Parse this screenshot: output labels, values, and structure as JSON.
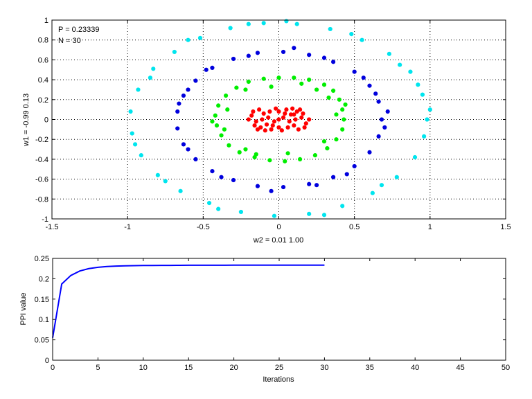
{
  "colors": {
    "inner": "#ff0000",
    "ring2": "#00ee00",
    "ring3": "#0000dd",
    "ring4": "#00e5ee",
    "curve": "#0000ff"
  },
  "chart_data": [
    {
      "type": "scatter",
      "annotations": [
        "P = 0.23339",
        "N = 30"
      ],
      "xlabel": "w2 = 0.01  1.00",
      "ylabel": "w1 = -0.99  0.13",
      "xlim": [
        -1.5,
        1.5
      ],
      "ylim": [
        -1,
        1
      ],
      "xticks": [
        -1.5,
        -1,
        -0.5,
        0,
        0.5,
        1,
        1.5
      ],
      "yticks": [
        -1,
        -0.8,
        -0.6,
        -0.4,
        -0.2,
        0,
        0.2,
        0.4,
        0.6,
        0.8,
        1
      ],
      "xtick_labels": [
        "-1.5",
        "-1",
        "-0.5",
        "0",
        "0.5",
        "1",
        "1.5"
      ],
      "ytick_labels": [
        "-1",
        "-0.8",
        "-0.6",
        "-0.4",
        "-0.2",
        "0",
        "0.2",
        "0.4",
        "0.6",
        "0.8",
        "1"
      ],
      "grid": true,
      "series": [
        {
          "color": "#ff0000",
          "points": [
            [
              0.0,
              0.0
            ],
            [
              0.08,
              0.05
            ],
            [
              -0.08,
              -0.05
            ],
            [
              0.1,
              -0.06
            ],
            [
              -0.1,
              0.06
            ],
            [
              0.15,
              0.02
            ],
            [
              -0.15,
              -0.02
            ],
            [
              0.05,
              0.1
            ],
            [
              -0.05,
              -0.1
            ],
            [
              0.12,
              0.08
            ],
            [
              -0.12,
              -0.08
            ],
            [
              0.02,
              -0.11
            ],
            [
              -0.02,
              0.11
            ],
            [
              0.18,
              -0.04
            ],
            [
              -0.18,
              0.04
            ],
            [
              0.07,
              -0.02
            ],
            [
              -0.07,
              0.02
            ],
            [
              0.13,
              -0.1
            ],
            [
              -0.13,
              0.1
            ],
            [
              0.04,
              0.06
            ],
            [
              -0.04,
              -0.06
            ],
            [
              0.16,
              0.06
            ],
            [
              -0.16,
              -0.06
            ],
            [
              0.09,
              0.11
            ],
            [
              -0.09,
              -0.11
            ],
            [
              0.0,
              0.08
            ],
            [
              0.0,
              -0.08
            ],
            [
              0.2,
              0.0
            ],
            [
              -0.2,
              0.0
            ],
            [
              0.11,
              0.0
            ],
            [
              -0.11,
              0.0
            ],
            [
              0.06,
              -0.08
            ],
            [
              -0.06,
              0.08
            ],
            [
              0.14,
              0.1
            ],
            [
              -0.14,
              -0.1
            ],
            [
              0.03,
              0.02
            ],
            [
              -0.03,
              -0.02
            ],
            [
              0.17,
              -0.08
            ],
            [
              -0.17,
              0.08
            ],
            [
              0.1,
              0.05
            ]
          ]
        },
        {
          "color": "#00ee00",
          "points": [
            [
              0.43,
              0.0
            ],
            [
              0.42,
              0.1
            ],
            [
              0.4,
              0.2
            ],
            [
              0.36,
              0.29
            ],
            [
              0.3,
              0.35
            ],
            [
              0.2,
              0.4
            ],
            [
              0.1,
              0.42
            ],
            [
              0.0,
              0.42
            ],
            [
              -0.1,
              0.41
            ],
            [
              -0.2,
              0.38
            ],
            [
              -0.28,
              0.32
            ],
            [
              -0.35,
              0.24
            ],
            [
              -0.4,
              0.14
            ],
            [
              -0.42,
              0.04
            ],
            [
              -0.41,
              -0.06
            ],
            [
              -0.38,
              -0.16
            ],
            [
              -0.33,
              -0.26
            ],
            [
              -0.26,
              -0.33
            ],
            [
              -0.16,
              -0.38
            ],
            [
              -0.06,
              -0.41
            ],
            [
              0.04,
              -0.42
            ],
            [
              0.14,
              -0.4
            ],
            [
              0.24,
              -0.36
            ],
            [
              0.32,
              -0.29
            ],
            [
              0.38,
              -0.2
            ],
            [
              0.42,
              -0.1
            ],
            [
              0.38,
              0.05
            ],
            [
              0.33,
              0.22
            ],
            [
              0.25,
              0.3
            ],
            [
              -0.05,
              0.33
            ],
            [
              -0.22,
              0.3
            ],
            [
              -0.34,
              0.1
            ],
            [
              -0.36,
              -0.1
            ],
            [
              -0.22,
              -0.3
            ],
            [
              0.06,
              -0.34
            ],
            [
              0.3,
              -0.22
            ],
            [
              0.44,
              0.15
            ],
            [
              -0.44,
              -0.02
            ],
            [
              0.15,
              0.36
            ],
            [
              -0.15,
              -0.35
            ]
          ]
        },
        {
          "color": "#0000dd",
          "points": [
            [
              0.68,
              0.0
            ],
            [
              0.66,
              0.18
            ],
            [
              0.6,
              0.34
            ],
            [
              0.5,
              0.48
            ],
            [
              0.36,
              0.58
            ],
            [
              0.2,
              0.65
            ],
            [
              0.03,
              0.68
            ],
            [
              -0.14,
              0.67
            ],
            [
              -0.3,
              0.61
            ],
            [
              -0.44,
              0.52
            ],
            [
              -0.55,
              0.39
            ],
            [
              -0.63,
              0.24
            ],
            [
              -0.67,
              0.08
            ],
            [
              -0.67,
              -0.09
            ],
            [
              -0.63,
              -0.25
            ],
            [
              -0.55,
              -0.4
            ],
            [
              -0.44,
              -0.52
            ],
            [
              -0.3,
              -0.61
            ],
            [
              -0.14,
              -0.67
            ],
            [
              0.03,
              -0.68
            ],
            [
              0.2,
              -0.65
            ],
            [
              0.36,
              -0.58
            ],
            [
              0.5,
              -0.47
            ],
            [
              0.6,
              -0.33
            ],
            [
              0.66,
              -0.17
            ],
            [
              0.72,
              0.08
            ],
            [
              0.7,
              -0.08
            ],
            [
              0.56,
              0.42
            ],
            [
              -0.6,
              0.3
            ],
            [
              -0.6,
              -0.3
            ],
            [
              0.45,
              -0.55
            ],
            [
              -0.48,
              0.5
            ],
            [
              0.1,
              0.72
            ],
            [
              -0.05,
              -0.72
            ],
            [
              0.3,
              0.62
            ],
            [
              -0.38,
              -0.58
            ],
            [
              0.64,
              0.26
            ],
            [
              -0.66,
              0.16
            ],
            [
              0.25,
              -0.66
            ],
            [
              -0.2,
              0.64
            ]
          ]
        },
        {
          "color": "#00e5ee",
          "points": [
            [
              0.98,
              0.0
            ],
            [
              0.95,
              0.25
            ],
            [
              0.87,
              0.48
            ],
            [
              0.73,
              0.66
            ],
            [
              0.55,
              0.8
            ],
            [
              0.34,
              0.91
            ],
            [
              0.12,
              0.96
            ],
            [
              -0.1,
              0.97
            ],
            [
              -0.32,
              0.92
            ],
            [
              -0.52,
              0.82
            ],
            [
              -0.69,
              0.68
            ],
            [
              -0.83,
              0.51
            ],
            [
              -0.93,
              0.3
            ],
            [
              -0.98,
              0.08
            ],
            [
              -0.97,
              -0.14
            ],
            [
              -0.91,
              -0.36
            ],
            [
              -0.8,
              -0.56
            ],
            [
              -0.65,
              -0.72
            ],
            [
              -0.46,
              -0.84
            ],
            [
              -0.25,
              -0.93
            ],
            [
              -0.03,
              -0.97
            ],
            [
              0.2,
              -0.95
            ],
            [
              0.42,
              -0.87
            ],
            [
              0.62,
              -0.74
            ],
            [
              0.78,
              -0.58
            ],
            [
              0.9,
              -0.38
            ],
            [
              0.96,
              -0.17
            ],
            [
              1.0,
              0.1
            ],
            [
              0.8,
              0.55
            ],
            [
              -0.85,
              0.42
            ],
            [
              -0.95,
              -0.25
            ],
            [
              0.3,
              -0.96
            ],
            [
              -0.6,
              0.8
            ],
            [
              0.68,
              -0.66
            ],
            [
              0.05,
              0.99
            ],
            [
              -0.4,
              -0.9
            ],
            [
              0.92,
              0.35
            ],
            [
              -0.75,
              -0.62
            ],
            [
              0.48,
              0.86
            ],
            [
              -0.2,
              0.96
            ]
          ]
        }
      ]
    },
    {
      "type": "line",
      "xlabel": "Iterations",
      "ylabel": "PPI value",
      "xlim": [
        0,
        50
      ],
      "ylim": [
        0,
        0.25
      ],
      "xticks": [
        0,
        5,
        10,
        15,
        20,
        25,
        30,
        35,
        40,
        45,
        50
      ],
      "yticks": [
        0,
        0.05,
        0.1,
        0.15,
        0.2,
        0.25
      ],
      "xtick_labels": [
        "0",
        "5",
        "10",
        "15",
        "20",
        "25",
        "30",
        "35",
        "40",
        "45",
        "50"
      ],
      "ytick_labels": [
        "0",
        "0.05",
        "0.1",
        "0.15",
        "0.2",
        "0.25"
      ],
      "grid": false,
      "x": [
        0,
        1,
        2,
        3,
        4,
        5,
        6,
        7,
        8,
        9,
        10,
        11,
        12,
        13,
        14,
        15,
        16,
        17,
        18,
        19,
        20,
        21,
        22,
        23,
        24,
        25,
        26,
        27,
        28,
        29,
        30
      ],
      "y": [
        0.055,
        0.187,
        0.208,
        0.219,
        0.225,
        0.228,
        0.23,
        0.2312,
        0.2318,
        0.2322,
        0.2325,
        0.2327,
        0.2328,
        0.2329,
        0.233,
        0.2331,
        0.2331,
        0.2332,
        0.2332,
        0.2332,
        0.2333,
        0.2333,
        0.2333,
        0.2333,
        0.2333,
        0.2333,
        0.2334,
        0.2334,
        0.2334,
        0.2334,
        0.2334
      ]
    }
  ]
}
